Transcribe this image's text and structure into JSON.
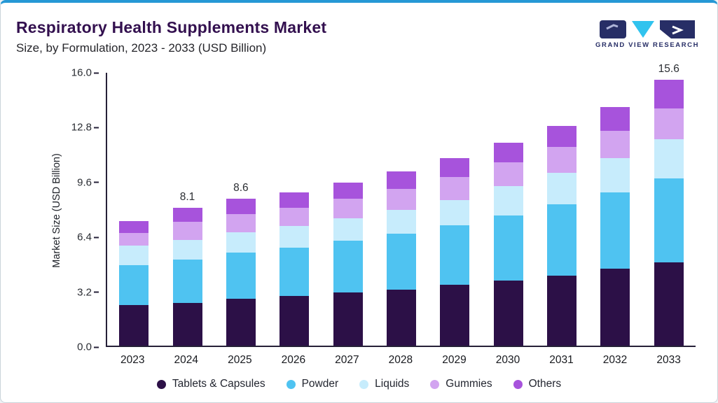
{
  "header": {
    "title": "Respiratory Health Supplements Market",
    "subtitle": "Size, by Formulation, 2023 - 2033 (USD Billion)",
    "logo_text": "GRAND VIEW RESEARCH"
  },
  "colors": {
    "top-border": "#2598d5",
    "title": "#33104f",
    "axis": "#262038",
    "logo-navy": "#272e66",
    "logo-cyan": "#31c3ee"
  },
  "chart_data": {
    "type": "bar",
    "stacked": true,
    "title": "Respiratory Health Supplements Market Size, by Formulation, 2023 - 2033 (USD Billion)",
    "xlabel": "",
    "ylabel": "Market Size (USD Billion)",
    "ylim": [
      0,
      16
    ],
    "yticks": [
      "16.0",
      "12.8",
      "9.6",
      "6.4",
      "3.2",
      "0.0"
    ],
    "grid": false,
    "legend_position": "bottom",
    "categories": [
      "2023",
      "2024",
      "2025",
      "2026",
      "2027",
      "2028",
      "2029",
      "2030",
      "2031",
      "2032",
      "2033"
    ],
    "series": [
      {
        "name": "Tablets & Capsules",
        "color": "#2c1047",
        "values": [
          2.4,
          2.5,
          2.75,
          2.9,
          3.1,
          3.3,
          3.55,
          3.8,
          4.1,
          4.5,
          4.9
        ]
      },
      {
        "name": "Powder",
        "color": "#4fc3f1",
        "values": [
          2.3,
          2.55,
          2.7,
          2.85,
          3.05,
          3.25,
          3.5,
          3.85,
          4.2,
          4.5,
          4.9
        ]
      },
      {
        "name": "Liquids",
        "color": "#c7ecfc",
        "values": [
          1.15,
          1.15,
          1.2,
          1.25,
          1.3,
          1.4,
          1.5,
          1.7,
          1.85,
          2.0,
          2.3
        ]
      },
      {
        "name": "Gummies",
        "color": "#d2a4f0",
        "values": [
          0.75,
          1.05,
          1.05,
          1.1,
          1.15,
          1.25,
          1.35,
          1.4,
          1.5,
          1.6,
          1.8
        ]
      },
      {
        "name": "Others",
        "color": "#a753dc",
        "values": [
          0.7,
          0.85,
          0.9,
          0.9,
          0.95,
          1.0,
          1.1,
          1.15,
          1.25,
          1.4,
          1.7
        ]
      }
    ],
    "totals": [
      7.3,
      8.1,
      8.6,
      9.0,
      9.55,
      10.2,
      11.0,
      11.9,
      12.9,
      14.0,
      15.6
    ],
    "total_labels": [
      "",
      "8.1",
      "8.6",
      "",
      "",
      "",
      "",
      "",
      "",
      "",
      "15.6"
    ]
  }
}
